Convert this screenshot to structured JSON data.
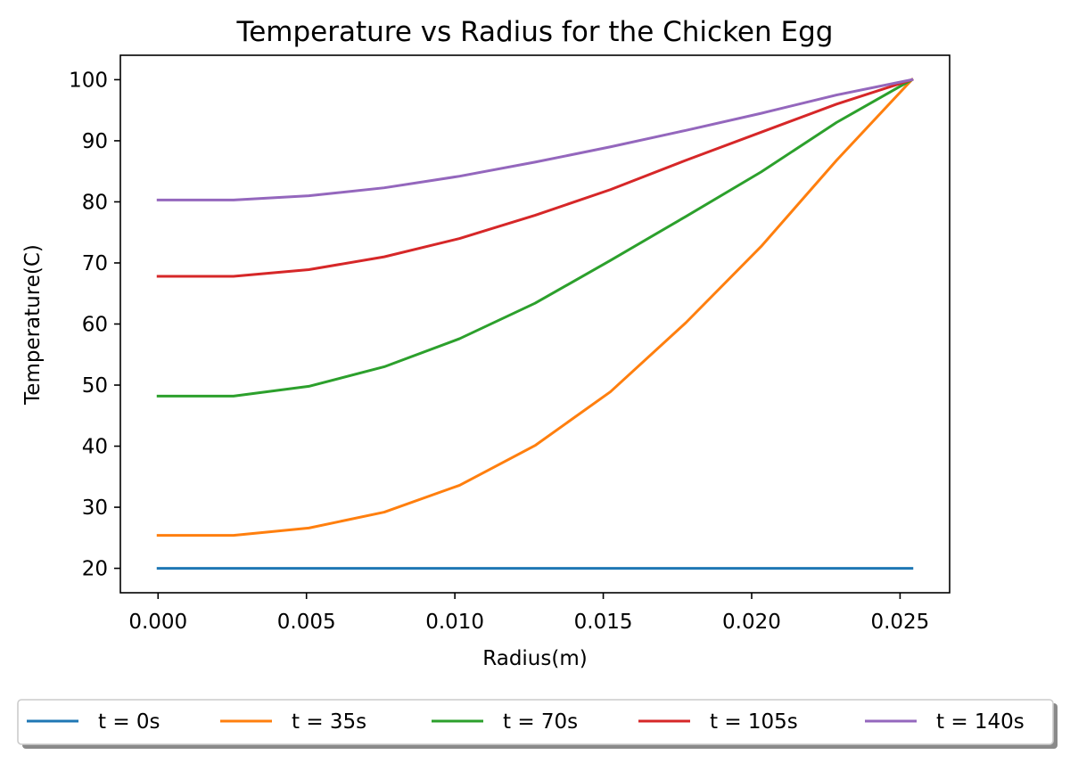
{
  "chart_data": {
    "type": "line",
    "title": "Temperature vs Radius for the Chicken Egg",
    "xlabel": "Radius(m)",
    "ylabel": "Temperature(C)",
    "xlim": [
      -0.00127,
      0.02667
    ],
    "ylim": [
      16,
      104
    ],
    "x_ticks": [
      0.0,
      0.005,
      0.01,
      0.015,
      0.02,
      0.025
    ],
    "x_tick_labels": [
      "0.000",
      "0.005",
      "0.010",
      "0.015",
      "0.020",
      "0.025"
    ],
    "y_ticks": [
      20,
      30,
      40,
      50,
      60,
      70,
      80,
      90,
      100
    ],
    "y_tick_labels": [
      "20",
      "30",
      "40",
      "50",
      "60",
      "70",
      "80",
      "90",
      "100"
    ],
    "grid": false,
    "legend_placement": "bottom-center, below axes, single row",
    "x": [
      0.0,
      0.00254,
      0.00508,
      0.00762,
      0.01016,
      0.0127,
      0.01524,
      0.01778,
      0.02032,
      0.02286,
      0.0254
    ],
    "series": [
      {
        "name": "t = 0s",
        "color": "#1f77b4",
        "values": [
          20,
          20,
          20,
          20,
          20,
          20,
          20,
          20,
          20,
          20,
          20
        ]
      },
      {
        "name": "t = 35s",
        "color": "#ff7f0e",
        "values": [
          25.4,
          25.4,
          26.6,
          29.2,
          33.6,
          40.1,
          48.9,
          60.2,
          72.7,
          86.8,
          100
        ]
      },
      {
        "name": "t = 70s",
        "color": "#2ca02c",
        "values": [
          48.2,
          48.2,
          49.8,
          53.0,
          57.6,
          63.4,
          70.4,
          77.6,
          84.9,
          93.0,
          100
        ]
      },
      {
        "name": "t = 105s",
        "color": "#d62728",
        "values": [
          67.8,
          67.8,
          68.9,
          71.0,
          74.0,
          77.8,
          82.0,
          86.8,
          91.4,
          96.0,
          100
        ]
      },
      {
        "name": "t = 140s",
        "color": "#9467bd",
        "values": [
          80.3,
          80.3,
          81.0,
          82.3,
          84.2,
          86.5,
          89.0,
          91.7,
          94.5,
          97.5,
          100
        ]
      }
    ]
  }
}
